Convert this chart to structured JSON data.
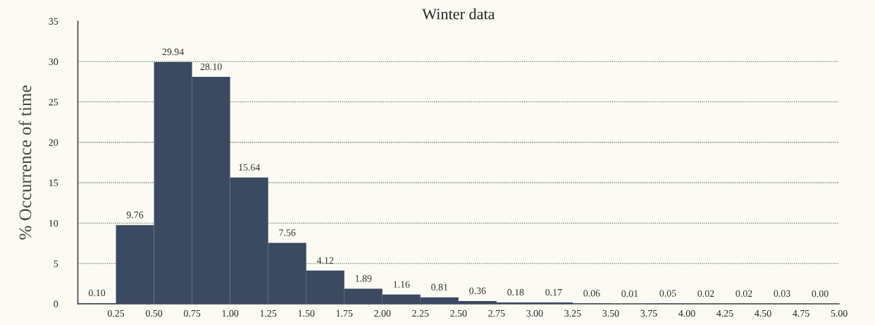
{
  "chart_data": {
    "type": "histogram",
    "title": "Winter data",
    "ylabel": "% Occurrence of time",
    "bins": [
      0,
      0.25,
      0.5,
      0.75,
      1.0,
      1.25,
      1.5,
      1.75,
      2.0,
      2.25,
      2.5,
      2.75,
      3.0,
      3.25,
      3.5,
      3.75,
      4.0,
      4.25,
      4.5,
      4.75,
      5.0
    ],
    "values": [
      0.1,
      9.76,
      29.94,
      28.1,
      15.64,
      7.56,
      4.12,
      1.89,
      1.16,
      0.81,
      0.36,
      0.18,
      0.17,
      0.06,
      0.01,
      0.05,
      0.02,
      0.02,
      0.03,
      0.0
    ],
    "value_labels": [
      "0.10",
      "9.76",
      "29.94",
      "28.10",
      "15.64",
      "7.56",
      "4.12",
      "1.89",
      "1.16",
      "0.81",
      "0.36",
      "0.18",
      "0.17",
      "0.06",
      "0.01",
      "0.05",
      "0.02",
      "0.02",
      "0.03",
      "0.00"
    ],
    "color": "#3b4a61",
    "xlim": [
      0,
      5.0
    ],
    "xticks": [
      {
        "value": 0,
        "label": null
      },
      {
        "value": 0.25,
        "label": "0.25"
      },
      {
        "value": 0.5,
        "label": "0.50"
      },
      {
        "value": 0.75,
        "label": "0.75"
      },
      {
        "value": 1.0,
        "label": "1.00"
      },
      {
        "value": 1.25,
        "label": "1.25"
      },
      {
        "value": 1.5,
        "label": "1.50"
      },
      {
        "value": 1.75,
        "label": "1.75"
      },
      {
        "value": 2.0,
        "label": "2.00"
      },
      {
        "value": 2.25,
        "label": "2.25"
      },
      {
        "value": 2.5,
        "label": "2.50"
      },
      {
        "value": 2.75,
        "label": "2.75"
      },
      {
        "value": 3.0,
        "label": "3.00"
      },
      {
        "value": 3.25,
        "label": "3.25"
      },
      {
        "value": 3.5,
        "label": "3.50"
      },
      {
        "value": 3.75,
        "label": "3.75"
      },
      {
        "value": 4.0,
        "label": "4.00"
      },
      {
        "value": 4.25,
        "label": "4.25"
      },
      {
        "value": 4.5,
        "label": "4.50"
      },
      {
        "value": 4.75,
        "label": "4.75"
      },
      {
        "value": 5.0,
        "label": "5.00"
      }
    ],
    "ylim": [
      0,
      35
    ],
    "yticks": [
      0,
      5,
      10,
      15,
      20,
      25,
      30,
      35
    ],
    "grid": "y"
  }
}
